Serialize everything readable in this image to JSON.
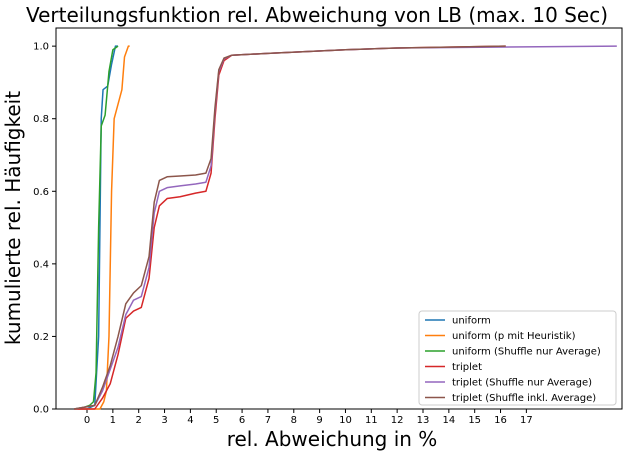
{
  "chart_data": {
    "type": "line",
    "title": "Verteilungsfunktion rel. Abweichung von LB (max. 10 Sec)",
    "xlabel": "rel. Abweichung in %",
    "ylabel": "kumulierte rel. Häufigkeit",
    "xlim": [
      -1.2,
      20.7
    ],
    "ylim": [
      0.0,
      1.05
    ],
    "xticks": [
      0,
      1,
      2,
      3,
      4,
      5,
      6,
      7,
      8,
      9,
      10,
      11,
      12,
      13,
      14,
      15,
      16,
      17
    ],
    "yticks": [
      0.0,
      0.2,
      0.4,
      0.6,
      0.8,
      1.0
    ],
    "xtick_labels": [
      "0",
      "1",
      "2",
      "3",
      "4",
      "5",
      "6",
      "7",
      "8",
      "9",
      "10",
      "11",
      "12",
      "13",
      "14",
      "15",
      "16",
      "17"
    ],
    "ytick_labels": [
      "0.0",
      "0.2",
      "0.4",
      "0.6",
      "0.8",
      "1.0"
    ],
    "grid": false,
    "legend_position": "lower right",
    "series": [
      {
        "name": "uniform",
        "color": "#1f77b4",
        "points": [
          [
            -0.5,
            0.0
          ],
          [
            0.0,
            0.0
          ],
          [
            0.3,
            0.01
          ],
          [
            0.45,
            0.2
          ],
          [
            0.55,
            0.8
          ],
          [
            0.62,
            0.88
          ],
          [
            0.8,
            0.89
          ],
          [
            0.95,
            0.95
          ],
          [
            1.1,
            1.0
          ],
          [
            1.2,
            1.0
          ]
        ]
      },
      {
        "name": "uniform (p mit Heuristik)",
        "color": "#ff7f0e",
        "points": [
          [
            -0.5,
            0.0
          ],
          [
            0.5,
            0.0
          ],
          [
            0.65,
            0.02
          ],
          [
            0.75,
            0.05
          ],
          [
            0.85,
            0.2
          ],
          [
            0.95,
            0.6
          ],
          [
            1.05,
            0.8
          ],
          [
            1.2,
            0.84
          ],
          [
            1.35,
            0.88
          ],
          [
            1.45,
            0.97
          ],
          [
            1.6,
            1.0
          ],
          [
            1.65,
            1.0
          ]
        ]
      },
      {
        "name": "uniform (Shuffle nur Average)",
        "color": "#2ca02c",
        "points": [
          [
            -0.5,
            0.0
          ],
          [
            -0.1,
            0.005
          ],
          [
            0.1,
            0.01
          ],
          [
            0.25,
            0.02
          ],
          [
            0.35,
            0.1
          ],
          [
            0.45,
            0.5
          ],
          [
            0.55,
            0.78
          ],
          [
            0.7,
            0.81
          ],
          [
            0.85,
            0.93
          ],
          [
            1.0,
            0.99
          ],
          [
            1.2,
            1.0
          ]
        ]
      },
      {
        "name": "triplet",
        "color": "#d62728",
        "points": [
          [
            -0.5,
            0.0
          ],
          [
            0.3,
            0.0
          ],
          [
            0.6,
            0.03
          ],
          [
            0.9,
            0.07
          ],
          [
            1.2,
            0.15
          ],
          [
            1.5,
            0.25
          ],
          [
            1.8,
            0.27
          ],
          [
            2.1,
            0.28
          ],
          [
            2.4,
            0.36
          ],
          [
            2.6,
            0.5
          ],
          [
            2.8,
            0.56
          ],
          [
            3.1,
            0.58
          ],
          [
            3.6,
            0.585
          ],
          [
            4.2,
            0.595
          ],
          [
            4.6,
            0.6
          ],
          [
            4.8,
            0.65
          ],
          [
            4.95,
            0.8
          ],
          [
            5.1,
            0.92
          ],
          [
            5.3,
            0.96
          ],
          [
            5.6,
            0.975
          ],
          [
            7.0,
            0.98
          ],
          [
            10.0,
            0.99
          ],
          [
            12.0,
            0.995
          ],
          [
            16.2,
            1.0
          ]
        ]
      },
      {
        "name": "triplet (Shuffle nur Average)",
        "color": "#9467bd",
        "points": [
          [
            -0.5,
            0.0
          ],
          [
            0.3,
            0.01
          ],
          [
            0.6,
            0.05
          ],
          [
            0.9,
            0.11
          ],
          [
            1.2,
            0.17
          ],
          [
            1.5,
            0.26
          ],
          [
            1.8,
            0.3
          ],
          [
            2.1,
            0.31
          ],
          [
            2.4,
            0.39
          ],
          [
            2.6,
            0.54
          ],
          [
            2.8,
            0.6
          ],
          [
            3.1,
            0.61
          ],
          [
            3.6,
            0.615
          ],
          [
            4.2,
            0.62
          ],
          [
            4.6,
            0.625
          ],
          [
            4.8,
            0.67
          ],
          [
            4.95,
            0.82
          ],
          [
            5.1,
            0.93
          ],
          [
            5.3,
            0.965
          ],
          [
            5.6,
            0.975
          ],
          [
            7.0,
            0.98
          ],
          [
            10.0,
            0.99
          ],
          [
            12.0,
            0.995
          ],
          [
            20.5,
            1.0
          ]
        ]
      },
      {
        "name": "triplet (Shuffle inkl. Average)",
        "color": "#8c564b",
        "points": [
          [
            -0.5,
            0.0
          ],
          [
            0.3,
            0.01
          ],
          [
            0.6,
            0.06
          ],
          [
            0.9,
            0.12
          ],
          [
            1.2,
            0.2
          ],
          [
            1.5,
            0.29
          ],
          [
            1.8,
            0.32
          ],
          [
            2.1,
            0.34
          ],
          [
            2.4,
            0.42
          ],
          [
            2.6,
            0.57
          ],
          [
            2.8,
            0.63
          ],
          [
            3.1,
            0.64
          ],
          [
            3.6,
            0.642
          ],
          [
            4.2,
            0.645
          ],
          [
            4.6,
            0.65
          ],
          [
            4.8,
            0.69
          ],
          [
            4.95,
            0.83
          ],
          [
            5.1,
            0.935
          ],
          [
            5.3,
            0.967
          ],
          [
            5.6,
            0.975
          ],
          [
            7.0,
            0.98
          ],
          [
            10.0,
            0.99
          ],
          [
            12.0,
            0.995
          ],
          [
            16.2,
            1.0
          ]
        ]
      }
    ]
  }
}
